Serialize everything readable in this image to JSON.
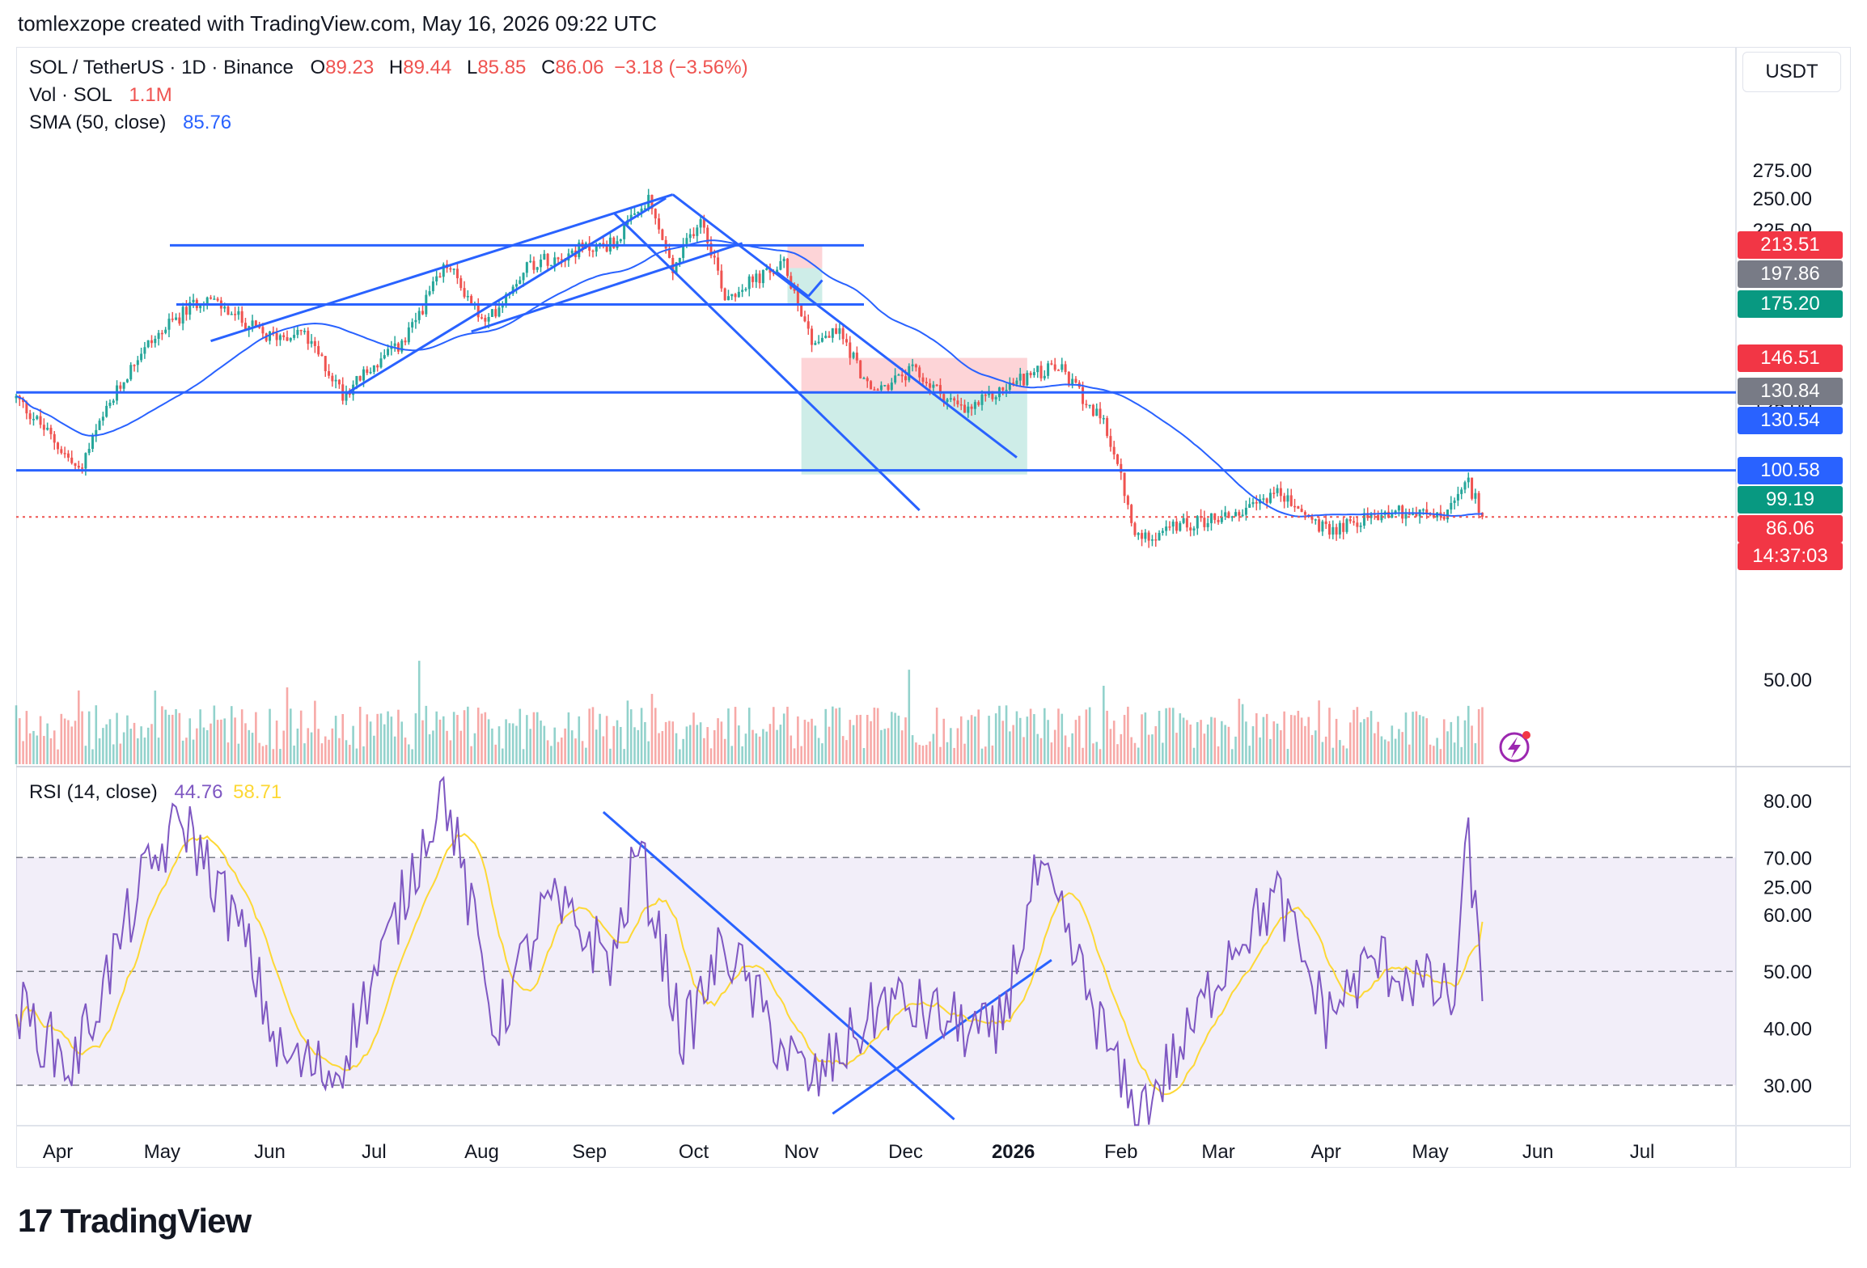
{
  "header": {
    "attribution": "tomlexzope created with TradingView.com, May 16, 2026 09:22 UTC"
  },
  "legend": {
    "symbol": "SOL / TetherUS · 1D · Binance",
    "open_label": "O",
    "open": "89.23",
    "high_label": "H",
    "high": "89.44",
    "low_label": "L",
    "low": "85.85",
    "close_label": "C",
    "close": "86.06",
    "change": "−3.18 (−3.56%)",
    "vol_label": "Vol · SOL",
    "vol_value": "1.1M",
    "sma_label": "SMA (50, close)",
    "sma_value": "85.76",
    "rsi_label": "RSI (14, close)",
    "rsi_value": "44.76",
    "rsi_ma_value": "58.71"
  },
  "currency_button": "USDT",
  "brand": "TradingView",
  "colors": {
    "up": "#26a69a",
    "down": "#ef5350",
    "line": "#2962ff",
    "sma": "#2962ff",
    "rsi": "#7e57c2",
    "rsi_ma": "#fdd835",
    "tag_red": "#f23645",
    "tag_gray": "#787b86",
    "tag_green": "#089981",
    "tag_blue": "#2962ff"
  },
  "price_tags": [
    {
      "label": "213.51",
      "color": "#f23645"
    },
    {
      "label": "197.86",
      "color": "#787b86"
    },
    {
      "label": "175.20",
      "color": "#089981"
    },
    {
      "label": "146.51",
      "color": "#f23645"
    },
    {
      "label": "130.84",
      "color": "#787b86"
    },
    {
      "label": "130.54",
      "color": "#2962ff"
    },
    {
      "label": "100.58",
      "color": "#2962ff"
    },
    {
      "label": "99.19",
      "color": "#089981"
    },
    {
      "label": "86.06",
      "color": "#f23645"
    }
  ],
  "countdown": "14:37:03",
  "chart_data": [
    {
      "type": "candlestick",
      "title": "SOL / TetherUS · 1D · Binance",
      "price_axis_ticks": [
        "275.00",
        "250.00",
        "225.00",
        "125.00",
        "50.00",
        "25.00"
      ],
      "x_ticks": [
        "Apr",
        "May",
        "Jun",
        "Jul",
        "Aug",
        "Sep",
        "Oct",
        "Nov",
        "Dec",
        "2026",
        "Feb",
        "Mar",
        "Apr",
        "May",
        "Jun",
        "Jul"
      ],
      "last_close": 86.06,
      "sma50_last": 85.76,
      "close_path": [
        {
          "date": "2025-03-20",
          "close": 128
        },
        {
          "date": "2025-04-07",
          "close": 100
        },
        {
          "date": "2025-04-25",
          "close": 150
        },
        {
          "date": "2025-05-13",
          "close": 180
        },
        {
          "date": "2025-05-31",
          "close": 157
        },
        {
          "date": "2025-06-10",
          "close": 160
        },
        {
          "date": "2025-06-22",
          "close": 130
        },
        {
          "date": "2025-07-10",
          "close": 155
        },
        {
          "date": "2025-07-22",
          "close": 200
        },
        {
          "date": "2025-08-02",
          "close": 163
        },
        {
          "date": "2025-08-14",
          "close": 200
        },
        {
          "date": "2025-08-28",
          "close": 210
        },
        {
          "date": "2025-09-08",
          "close": 215
        },
        {
          "date": "2025-09-18",
          "close": 247
        },
        {
          "date": "2025-09-25",
          "close": 195
        },
        {
          "date": "2025-10-03",
          "close": 235
        },
        {
          "date": "2025-10-10",
          "close": 180
        },
        {
          "date": "2025-10-27",
          "close": 200
        },
        {
          "date": "2025-11-04",
          "close": 155
        },
        {
          "date": "2025-11-12",
          "close": 160
        },
        {
          "date": "2025-11-21",
          "close": 130
        },
        {
          "date": "2025-12-03",
          "close": 140
        },
        {
          "date": "2025-12-18",
          "close": 122
        },
        {
          "date": "2026-01-05",
          "close": 138
        },
        {
          "date": "2026-01-14",
          "close": 142
        },
        {
          "date": "2026-01-28",
          "close": 115
        },
        {
          "date": "2026-02-05",
          "close": 80
        },
        {
          "date": "2026-02-20",
          "close": 84
        },
        {
          "date": "2026-03-10",
          "close": 88
        },
        {
          "date": "2026-03-17",
          "close": 94
        },
        {
          "date": "2026-04-01",
          "close": 82
        },
        {
          "date": "2026-04-20",
          "close": 88
        },
        {
          "date": "2026-05-05",
          "close": 86
        },
        {
          "date": "2026-05-12",
          "close": 96
        },
        {
          "date": "2026-05-16",
          "close": 86.06
        }
      ],
      "horizontal_levels": [
        213.51,
        175.2,
        130.54,
        100.58
      ],
      "position_boxes": [
        {
          "entry": 197.86,
          "stop": 213.51,
          "target": 175.2
        },
        {
          "entry": 130.84,
          "stop": 146.51,
          "target": 99.19
        }
      ]
    },
    {
      "type": "line",
      "title": "RSI (14, close)",
      "y_ticks": [
        "80.00",
        "70.00",
        "60.00",
        "50.00",
        "40.00",
        "30.00"
      ],
      "ylim": [
        23,
        85
      ],
      "bands": {
        "upper": 70,
        "middle": 50,
        "lower": 30
      },
      "series": [
        {
          "name": "RSI",
          "last": 44.76
        },
        {
          "name": "RSI-based MA",
          "last": 58.71
        }
      ],
      "rsi_path": [
        {
          "date": "2025-03-20",
          "value": 44
        },
        {
          "date": "2025-04-05",
          "value": 33
        },
        {
          "date": "2025-04-25",
          "value": 65
        },
        {
          "date": "2025-05-07",
          "value": 77
        },
        {
          "date": "2025-05-25",
          "value": 55
        },
        {
          "date": "2025-06-04",
          "value": 35
        },
        {
          "date": "2025-06-20",
          "value": 32
        },
        {
          "date": "2025-07-05",
          "value": 55
        },
        {
          "date": "2025-07-21",
          "value": 83
        },
        {
          "date": "2025-08-05",
          "value": 40
        },
        {
          "date": "2025-08-20",
          "value": 62
        },
        {
          "date": "2025-09-08",
          "value": 52
        },
        {
          "date": "2025-09-15",
          "value": 72
        },
        {
          "date": "2025-09-28",
          "value": 38
        },
        {
          "date": "2025-10-10",
          "value": 55
        },
        {
          "date": "2025-10-25",
          "value": 38
        },
        {
          "date": "2025-11-04",
          "value": 30
        },
        {
          "date": "2025-11-25",
          "value": 45
        },
        {
          "date": "2025-12-10",
          "value": 42
        },
        {
          "date": "2025-12-27",
          "value": 38
        },
        {
          "date": "2026-01-08",
          "value": 67
        },
        {
          "date": "2026-01-14",
          "value": 60
        },
        {
          "date": "2026-01-25",
          "value": 42
        },
        {
          "date": "2026-02-05",
          "value": 24
        },
        {
          "date": "2026-02-20",
          "value": 38
        },
        {
          "date": "2026-03-05",
          "value": 55
        },
        {
          "date": "2026-03-18",
          "value": 63
        },
        {
          "date": "2026-04-01",
          "value": 42
        },
        {
          "date": "2026-04-15",
          "value": 52
        },
        {
          "date": "2026-04-28",
          "value": 48
        },
        {
          "date": "2026-05-08",
          "value": 45
        },
        {
          "date": "2026-05-12",
          "value": 74
        },
        {
          "date": "2026-05-16",
          "value": 44.76
        }
      ]
    }
  ]
}
